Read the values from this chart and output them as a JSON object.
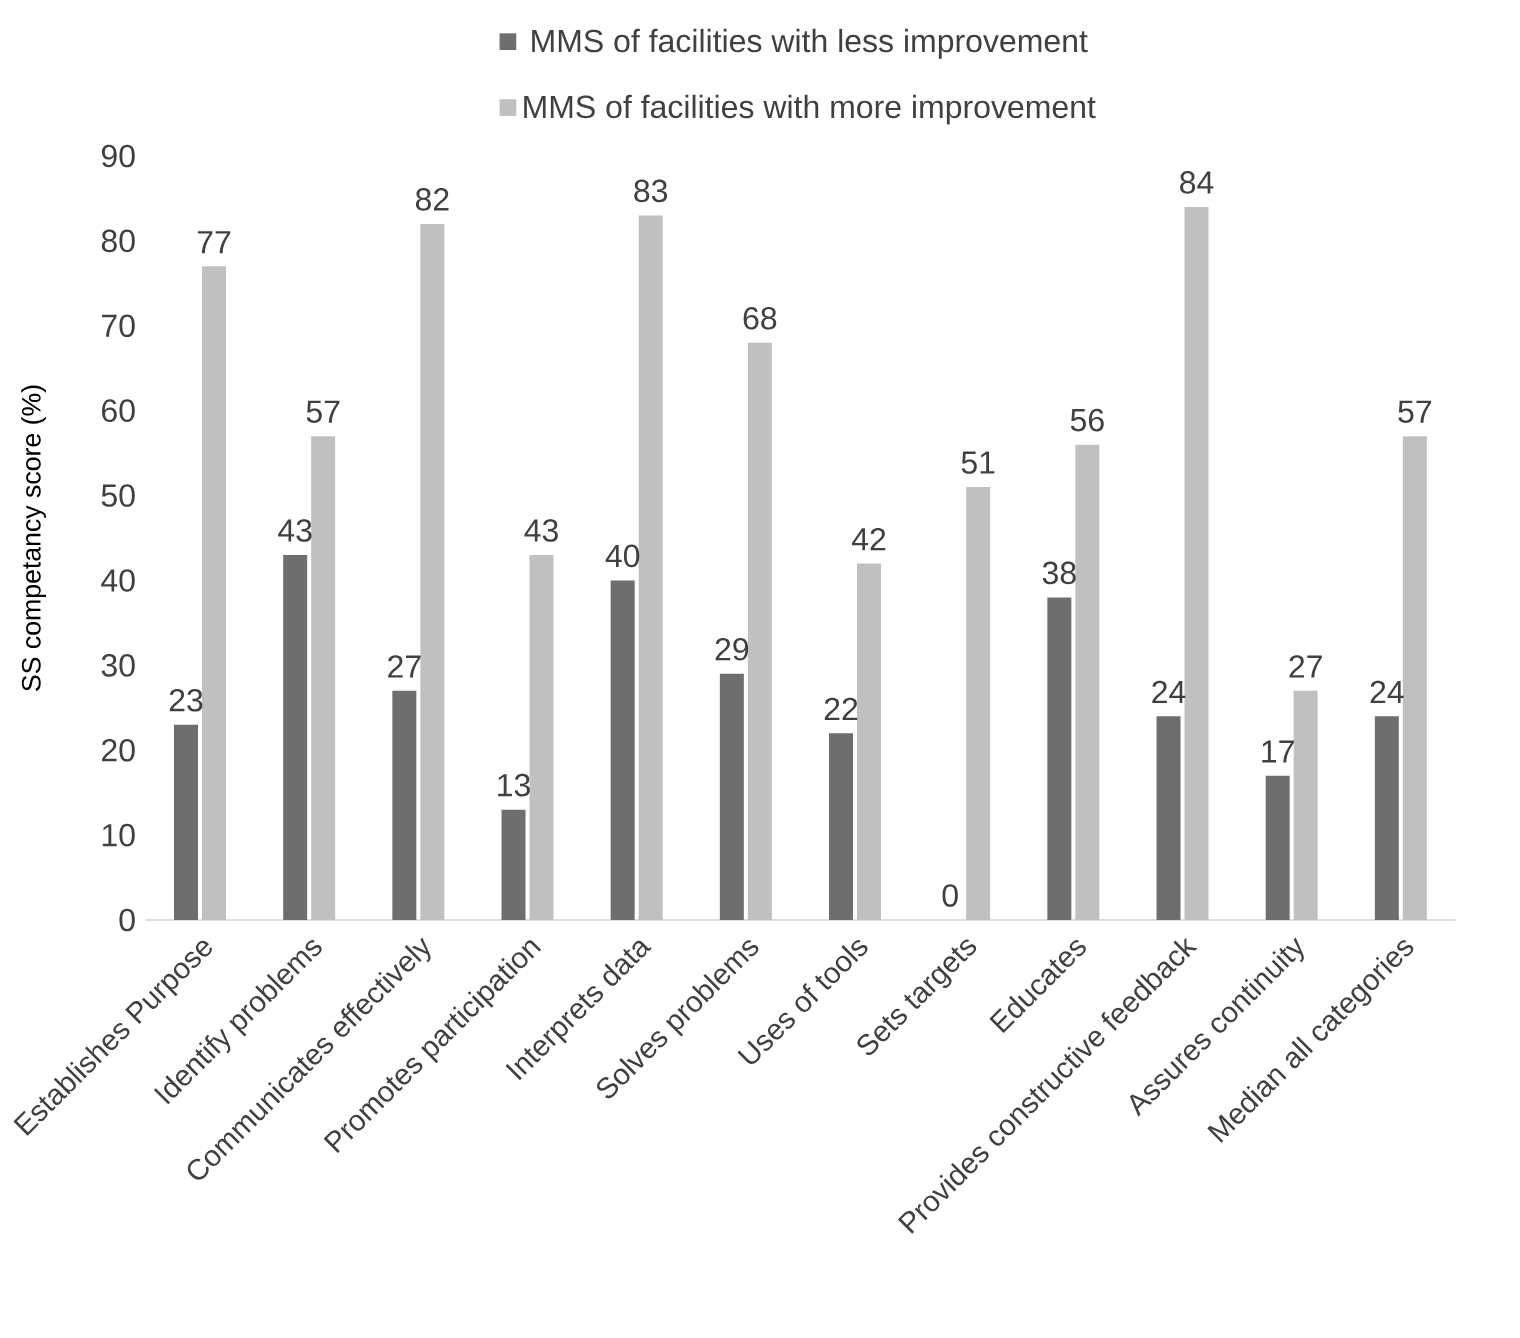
{
  "chart_data": {
    "type": "bar",
    "categories": [
      "Establishes Purpose",
      "Identify problems",
      "Communicates effectively",
      "Promotes participation",
      "Interprets data",
      "Solves problems",
      "Uses of tools",
      "Sets targets",
      "Educates",
      "Provides constructive feedback",
      "Assures continuity",
      "Median all categories"
    ],
    "series": [
      {
        "name": "MMS of facilities with less improvement",
        "color": "#6e6e6e",
        "values": [
          23,
          43,
          27,
          13,
          40,
          29,
          22,
          0,
          38,
          24,
          17,
          24
        ]
      },
      {
        "name": "MMS of facilities with more improvement",
        "color": "#c0c0c0",
        "values": [
          77,
          57,
          82,
          43,
          83,
          68,
          42,
          51,
          56,
          84,
          27,
          57
        ]
      }
    ],
    "ylabel": "SS competancy score (%)",
    "ylim": [
      0,
      90
    ],
    "yticks": [
      0,
      10,
      20,
      30,
      40,
      50,
      60,
      70,
      80,
      90
    ],
    "data_labels": true,
    "legend": "top"
  }
}
